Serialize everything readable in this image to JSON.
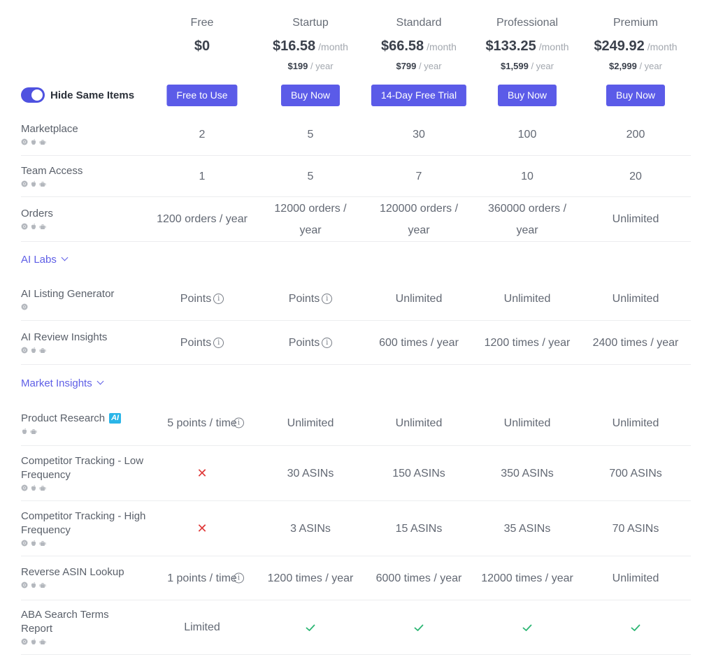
{
  "toggle": {
    "label": "Hide Same Items",
    "on": true
  },
  "plans": [
    {
      "name": "Free",
      "price": "$0",
      "per": "",
      "year_price": "",
      "year_unit": "",
      "button": "Free to Use"
    },
    {
      "name": "Startup",
      "price": "$16.58",
      "per": "/month",
      "year_price": "$199",
      "year_unit": "/ year",
      "button": "Buy Now"
    },
    {
      "name": "Standard",
      "price": "$66.58",
      "per": "/month",
      "year_price": "$799",
      "year_unit": "/ year",
      "button": "14-Day Free Trial"
    },
    {
      "name": "Professional",
      "price": "$133.25",
      "per": "/month",
      "year_price": "$1,599",
      "year_unit": "/ year",
      "button": "Buy Now"
    },
    {
      "name": "Premium",
      "price": "$249.92",
      "per": "/month",
      "year_price": "$2,999",
      "year_unit": "/ year",
      "button": "Buy Now"
    }
  ],
  "sections": {
    "ai_labs": "AI Labs",
    "market_insights": "Market Insights"
  },
  "ai_badge": "AI",
  "features": [
    {
      "name": "Marketplace",
      "platforms": [
        "chrome-icon",
        "apple-icon",
        "android-icon"
      ],
      "values": [
        "2",
        "5",
        "30",
        "100",
        "200"
      ]
    },
    {
      "name": "Team Access",
      "platforms": [
        "chrome-icon",
        "apple-icon",
        "android-icon"
      ],
      "values": [
        "1",
        "5",
        "7",
        "10",
        "20"
      ]
    },
    {
      "name": "Orders",
      "platforms": [
        "chrome-icon",
        "apple-icon",
        "android-icon"
      ],
      "values": [
        "1200 orders / year",
        "12000 orders / year",
        "120000 orders / year",
        "360000 orders / year",
        "Unlimited"
      ]
    },
    {
      "name": "AI Listing Generator",
      "platforms": [
        "chrome-icon"
      ],
      "values": [
        "Points",
        "Points",
        "Unlimited",
        "Unlimited",
        "Unlimited"
      ]
    },
    {
      "name": "AI Review Insights",
      "platforms": [
        "chrome-icon",
        "apple-icon",
        "android-icon"
      ],
      "values": [
        "Points",
        "Points",
        "600 times / year",
        "1200 times / year",
        "2400 times / year"
      ]
    },
    {
      "name": "Product Research",
      "platforms": [
        "apple-icon",
        "android-icon"
      ],
      "values": [
        "5 points / time",
        "Unlimited",
        "Unlimited",
        "Unlimited",
        "Unlimited"
      ]
    },
    {
      "name": "Competitor Tracking - Low Frequency",
      "platforms": [
        "chrome-icon",
        "apple-icon",
        "android-icon"
      ],
      "values": [
        "",
        "30 ASINs",
        "150 ASINs",
        "350 ASINs",
        "700 ASINs"
      ]
    },
    {
      "name": "Competitor Tracking - High Frequency",
      "platforms": [
        "chrome-icon",
        "apple-icon",
        "android-icon"
      ],
      "values": [
        "",
        "3 ASINs",
        "15 ASINs",
        "35 ASINs",
        "70 ASINs"
      ]
    },
    {
      "name": "Reverse ASIN Lookup",
      "platforms": [
        "chrome-icon",
        "apple-icon",
        "android-icon"
      ],
      "values": [
        "1 points / time",
        "1200 times / year",
        "6000 times / year",
        "12000 times / year",
        "Unlimited"
      ]
    },
    {
      "name": "ABA Search Terms Report",
      "platforms": [
        "chrome-icon",
        "apple-icon",
        "android-icon"
      ],
      "values": [
        "Limited",
        "",
        "",
        "",
        ""
      ]
    }
  ],
  "colors": {
    "accent": "#5b5be8",
    "cross": "#e03a3a",
    "check": "#2bb673"
  }
}
